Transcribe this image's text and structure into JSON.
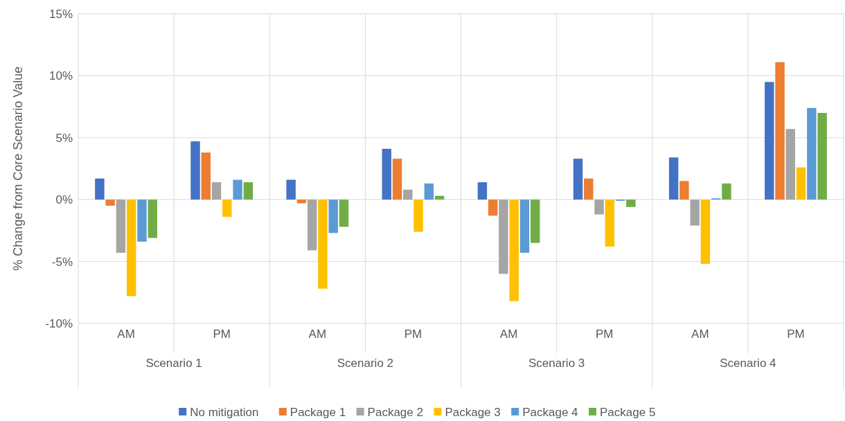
{
  "chart_data": {
    "type": "bar",
    "ylabel": "% Change from Core Scenario Value",
    "categories": [
      "AM",
      "PM",
      "AM",
      "PM",
      "AM",
      "PM",
      "AM",
      "PM"
    ],
    "annotations": [
      "Scenario 1",
      "Scenario 2",
      "Scenario 3",
      "Scenario 4"
    ],
    "ylim": [
      -10,
      15
    ],
    "yticks": [
      {
        "value": -10,
        "label": "-10%"
      },
      {
        "value": -5,
        "label": "-5%"
      },
      {
        "value": 0,
        "label": "0%"
      },
      {
        "value": 5,
        "label": "5%"
      },
      {
        "value": 10,
        "label": "10%"
      },
      {
        "value": 15,
        "label": "15%"
      }
    ],
    "grid": "y",
    "legend": "bottom",
    "series": [
      {
        "name": "No mitigation",
        "color": "#4472c4",
        "values": [
          1.7,
          4.7,
          1.6,
          4.1,
          1.4,
          3.3,
          3.4,
          9.5
        ]
      },
      {
        "name": "Package 1",
        "color": "#ed7d31",
        "values": [
          -0.5,
          3.8,
          -0.3,
          3.3,
          -1.3,
          1.7,
          1.5,
          11.1
        ]
      },
      {
        "name": "Package 2",
        "color": "#a5a5a5",
        "values": [
          -4.3,
          1.4,
          -4.1,
          0.8,
          -6.0,
          -1.2,
          -2.1,
          5.7
        ]
      },
      {
        "name": "Package 3",
        "color": "#ffc000",
        "values": [
          -7.8,
          -1.4,
          -7.2,
          -2.6,
          -8.2,
          -3.8,
          -5.2,
          2.6
        ]
      },
      {
        "name": "Package 4",
        "color": "#5b9bd5",
        "values": [
          -3.4,
          1.6,
          -2.7,
          1.3,
          -4.3,
          -0.1,
          0.1,
          7.4
        ]
      },
      {
        "name": "Package 5",
        "color": "#70ad47",
        "values": [
          -3.1,
          1.4,
          -2.2,
          0.3,
          -3.5,
          -0.6,
          1.3,
          7.0
        ]
      }
    ]
  }
}
